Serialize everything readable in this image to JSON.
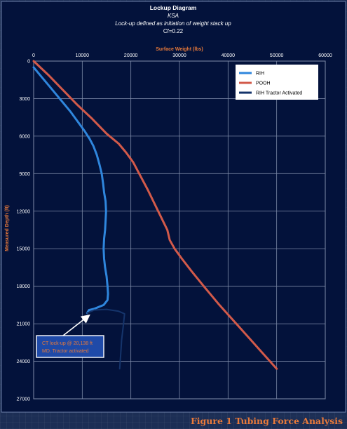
{
  "chart_data": {
    "type": "line",
    "title": "Lockup Diagram",
    "subtitle_lines": [
      "KSA",
      "Lock-up defined as initiation of weight stack up",
      "Cf=0.22"
    ],
    "xlabel": "Surface Weight (lbs)",
    "ylabel": "Measured Depth (ft)",
    "xlim": [
      0,
      60000
    ],
    "ylim": [
      0,
      27000
    ],
    "y_inverted": true,
    "x_ticks": [
      0,
      10000,
      20000,
      30000,
      40000,
      50000,
      60000
    ],
    "y_ticks": [
      0,
      3000,
      6000,
      9000,
      12000,
      15000,
      18000,
      21000,
      24000,
      27000
    ],
    "grid": true,
    "legend_position": "top-right",
    "series": [
      {
        "name": "RIH",
        "color": "#2f86dd",
        "points": [
          [
            0,
            500
          ],
          [
            1500,
            1200
          ],
          [
            3000,
            1900
          ],
          [
            4500,
            2600
          ],
          [
            6000,
            3300
          ],
          [
            7500,
            4000
          ],
          [
            9000,
            4800
          ],
          [
            10500,
            5600
          ],
          [
            11500,
            6200
          ],
          [
            12300,
            6800
          ],
          [
            13000,
            7500
          ],
          [
            13500,
            8200
          ],
          [
            14000,
            9000
          ],
          [
            14300,
            9800
          ],
          [
            14500,
            10500
          ],
          [
            14800,
            11200
          ],
          [
            14900,
            12000
          ],
          [
            14800,
            12800
          ],
          [
            14700,
            13500
          ],
          [
            14500,
            14200
          ],
          [
            14400,
            15000
          ],
          [
            14500,
            15800
          ],
          [
            14700,
            16500
          ],
          [
            15000,
            17200
          ],
          [
            15200,
            18000
          ],
          [
            15300,
            18600
          ],
          [
            15200,
            19100
          ],
          [
            14400,
            19500
          ],
          [
            12500,
            19800
          ],
          [
            11400,
            19900
          ],
          [
            11000,
            20138
          ]
        ]
      },
      {
        "name": "POOH",
        "color": "#d25a4a",
        "points": [
          [
            0,
            0
          ],
          [
            3000,
            1100
          ],
          [
            6000,
            2300
          ],
          [
            9000,
            3500
          ],
          [
            12000,
            4600
          ],
          [
            15000,
            5800
          ],
          [
            17500,
            6600
          ],
          [
            19000,
            7300
          ],
          [
            20500,
            8100
          ],
          [
            22000,
            9200
          ],
          [
            23500,
            10300
          ],
          [
            25000,
            11500
          ],
          [
            26500,
            12700
          ],
          [
            27500,
            13500
          ],
          [
            28000,
            14300
          ],
          [
            29000,
            15000
          ],
          [
            30500,
            15800
          ],
          [
            32500,
            16800
          ],
          [
            35000,
            18000
          ],
          [
            38000,
            19400
          ],
          [
            41000,
            20700
          ],
          [
            44000,
            22000
          ],
          [
            47000,
            23300
          ],
          [
            50000,
            24600
          ]
        ]
      },
      {
        "name": "RIH Tractor Activated",
        "color": "#15346b",
        "points": [
          [
            11000,
            20138
          ],
          [
            12500,
            19900
          ],
          [
            15000,
            19850
          ],
          [
            17500,
            20000
          ],
          [
            18700,
            20200
          ],
          [
            18400,
            21300
          ],
          [
            18100,
            22300
          ],
          [
            17900,
            23500
          ],
          [
            17700,
            24600
          ]
        ]
      }
    ],
    "annotation": {
      "text_lines": [
        "CT lock-up @ 20,138 ft",
        "MD.  Tractor activated"
      ],
      "points_to": [
        11000,
        20138
      ]
    }
  },
  "caption": "Figure 1 Tubing Force Analysis"
}
